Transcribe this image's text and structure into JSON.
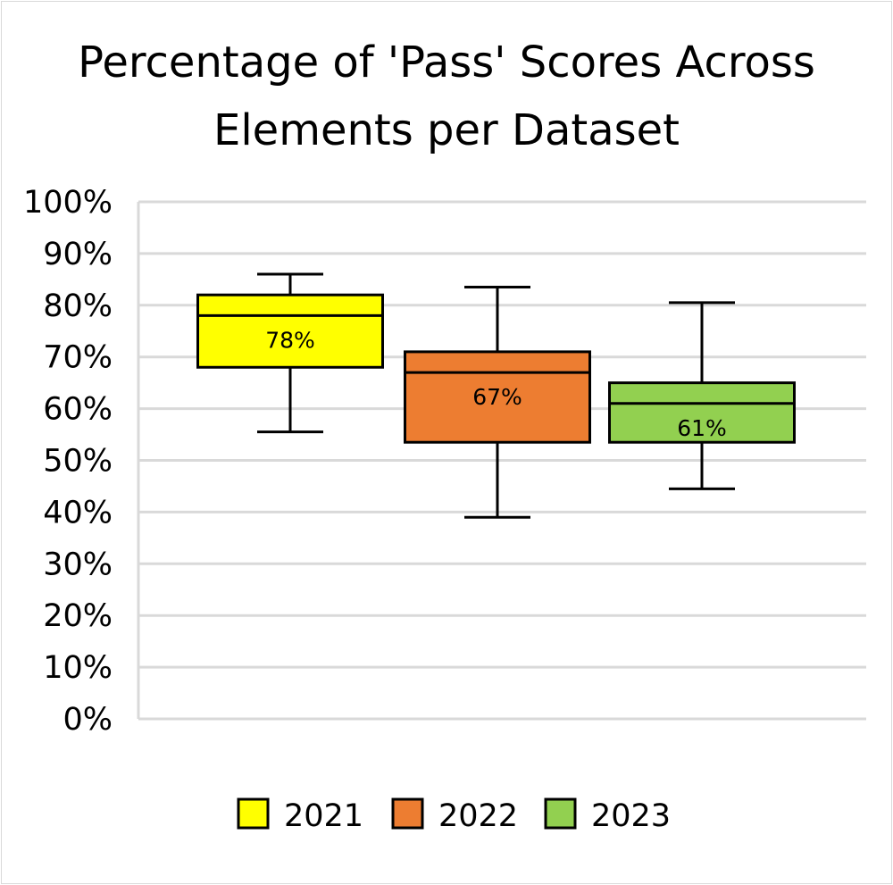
{
  "chart_data": {
    "type": "box",
    "title_lines": [
      "Percentage of 'Pass' Scores Across",
      "Elements per Dataset"
    ],
    "ylim": [
      0,
      100
    ],
    "y_tick_step": 10,
    "y_ticks": [
      "0%",
      "10%",
      "20%",
      "30%",
      "40%",
      "50%",
      "60%",
      "70%",
      "80%",
      "90%",
      "100%"
    ],
    "grid": true,
    "legend_position": "bottom",
    "series": [
      {
        "name": "2021",
        "color": "#ffff00",
        "min": 55.5,
        "q1": 68,
        "median": 78,
        "q3": 82,
        "max": 86,
        "median_label": "78%"
      },
      {
        "name": "2022",
        "color": "#ed7d31",
        "min": 39,
        "q1": 53.5,
        "median": 67,
        "q3": 71,
        "max": 83.5,
        "median_label": "67%"
      },
      {
        "name": "2023",
        "color": "#92d050",
        "min": 44.5,
        "q1": 53.5,
        "median": 61,
        "q3": 65,
        "max": 80.5,
        "median_label": "61%"
      }
    ]
  }
}
